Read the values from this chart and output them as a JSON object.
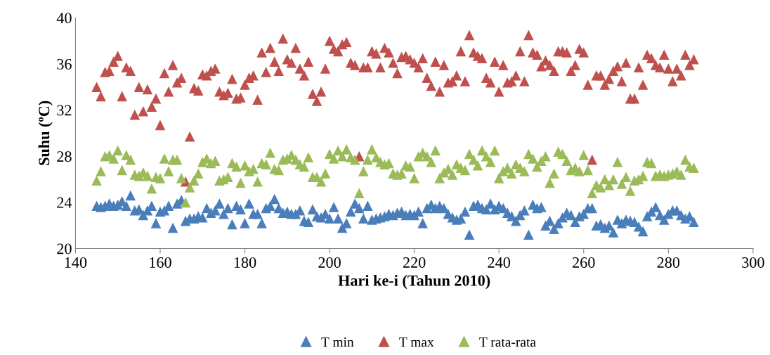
{
  "chart_data": {
    "type": "scatter",
    "xlabel": "Hari ke-i (Tahun 2010)",
    "ylabel": "Suhu (ºC)",
    "xlim": [
      140,
      300
    ],
    "xticks": [
      140,
      160,
      180,
      200,
      220,
      240,
      260,
      280,
      300
    ],
    "ylim": [
      20,
      40
    ],
    "yticks": [
      20,
      24,
      28,
      32,
      36,
      40
    ],
    "grid": false,
    "legend": "bottom",
    "marker": "triangle",
    "x": [
      145,
      146,
      147,
      148,
      149,
      150,
      151,
      152,
      153,
      154,
      155,
      156,
      157,
      158,
      159,
      160,
      161,
      162,
      163,
      164,
      165,
      166,
      167,
      168,
      169,
      170,
      171,
      172,
      173,
      174,
      175,
      176,
      177,
      178,
      179,
      180,
      181,
      182,
      183,
      184,
      185,
      186,
      187,
      188,
      189,
      190,
      191,
      192,
      193,
      194,
      195,
      196,
      197,
      198,
      199,
      200,
      201,
      202,
      203,
      204,
      205,
      206,
      207,
      208,
      209,
      210,
      211,
      212,
      213,
      214,
      215,
      216,
      217,
      218,
      219,
      220,
      221,
      222,
      223,
      224,
      225,
      226,
      227,
      228,
      229,
      230,
      231,
      232,
      233,
      234,
      235,
      236,
      237,
      238,
      239,
      240,
      241,
      242,
      243,
      244,
      245,
      246,
      247,
      248,
      249,
      250,
      251,
      252,
      253,
      254,
      255,
      256,
      257,
      258,
      259,
      260,
      261,
      262,
      263,
      264,
      265,
      266,
      267,
      268,
      269,
      270,
      271,
      272,
      273,
      274,
      275,
      276,
      277,
      278,
      279,
      280,
      281,
      282,
      283,
      284,
      285,
      286
    ],
    "series": [
      {
        "name": "T min",
        "color": "#4a7ebb",
        "values": [
          23.7,
          23.6,
          23.7,
          23.9,
          23.7,
          23.8,
          24.1,
          23.7,
          24.6,
          23.3,
          23.4,
          22.9,
          23.3,
          23.7,
          22.2,
          23.2,
          23.3,
          23.7,
          21.8,
          23.9,
          24.2,
          22.4,
          22.6,
          22.6,
          22.8,
          22.7,
          23.5,
          23.1,
          23.3,
          23.9,
          23.0,
          23.5,
          22.1,
          23.7,
          23.4,
          22.2,
          23.9,
          23.0,
          23.0,
          22.2,
          23.5,
          23.7,
          24.3,
          23.5,
          23.1,
          23.2,
          23.0,
          23.0,
          23.3,
          22.4,
          22.3,
          23.4,
          22.8,
          22.7,
          23.0,
          22.6,
          23.6,
          22.6,
          21.8,
          22.2,
          23.2,
          23.9,
          23.5,
          22.6,
          23.7,
          22.5,
          22.6,
          22.7,
          22.8,
          23.0,
          22.9,
          23.1,
          23.2,
          22.9,
          23.0,
          22.9,
          23.2,
          22.2,
          23.5,
          23.8,
          23.5,
          23.7,
          23.5,
          23.0,
          22.7,
          22.5,
          22.6,
          23.2,
          21.2,
          23.7,
          23.8,
          23.5,
          23.4,
          23.9,
          23.4,
          23.7,
          23.5,
          23.1,
          22.8,
          22.4,
          22.9,
          23.3,
          21.2,
          23.8,
          23.5,
          23.6,
          22.0,
          22.4,
          21.7,
          22.2,
          22.7,
          23.1,
          22.9,
          22.3,
          22.8,
          23.0,
          23.5,
          23.5,
          22.0,
          22.1,
          21.8,
          22.0,
          21.4,
          22.5,
          22.2,
          22.5,
          22.4,
          22.3,
          21.9,
          21.5,
          22.8,
          23.2,
          23.6,
          22.9,
          22.5,
          23.0,
          23.3,
          23.3,
          22.9,
          22.6,
          22.8,
          22.3
        ]
      },
      {
        "name": "T max",
        "color": "#c0504d",
        "values": [
          34.0,
          33.2,
          35.3,
          35.4,
          36.2,
          36.7,
          33.2,
          35.7,
          35.4,
          31.6,
          34.0,
          31.9,
          33.8,
          32.3,
          33.0,
          30.7,
          35.2,
          33.6,
          35.9,
          34.4,
          34.8,
          25.8,
          29.7,
          33.9,
          33.7,
          35.1,
          35.0,
          35.4,
          35.6,
          33.6,
          33.3,
          33.5,
          34.7,
          33.0,
          33.1,
          34.2,
          34.8,
          35.0,
          32.9,
          37.0,
          35.3,
          37.4,
          36.2,
          35.4,
          38.2,
          36.4,
          36.1,
          37.4,
          35.6,
          35.0,
          36.2,
          33.4,
          32.8,
          33.6,
          35.6,
          38.0,
          37.3,
          37.1,
          37.7,
          37.9,
          36.1,
          35.9,
          28.0,
          35.7,
          35.7,
          37.1,
          36.9,
          35.7,
          37.4,
          37.0,
          36.1,
          35.2,
          36.6,
          36.7,
          36.4,
          36.1,
          35.7,
          36.5,
          34.8,
          34.1,
          36.2,
          33.6,
          35.9,
          34.4,
          34.5,
          35.0,
          37.1,
          34.5,
          38.5,
          37.0,
          36.7,
          36.5,
          34.8,
          34.4,
          36.2,
          33.6,
          35.9,
          34.4,
          34.5,
          35.0,
          37.1,
          34.5,
          38.5,
          37.0,
          36.8,
          35.8,
          36.3,
          35.9,
          35.4,
          37.1,
          37.1,
          37.0,
          35.4,
          35.9,
          37.3,
          37.0,
          34.2,
          27.7,
          35.0,
          35.0,
          34.2,
          34.7,
          35.4,
          35.8,
          34.5,
          36.1,
          33.0,
          33.0,
          35.7,
          34.2,
          36.8,
          36.5,
          35.9,
          35.7,
          36.8,
          35.6,
          34.5,
          35.6,
          35.0,
          36.8,
          35.9,
          36.4
        ]
      },
      {
        "name": "T rata-rata",
        "color": "#9bbb59",
        "values": [
          25.9,
          26.7,
          28.0,
          28.1,
          27.8,
          28.5,
          26.8,
          28.1,
          27.7,
          26.4,
          26.3,
          26.6,
          26.3,
          25.2,
          26.2,
          26.1,
          27.8,
          26.7,
          27.7,
          27.7,
          26.1,
          24.0,
          25.3,
          25.9,
          26.5,
          27.5,
          27.8,
          27.4,
          27.6,
          25.9,
          26.0,
          26.2,
          27.4,
          27.1,
          25.7,
          27.2,
          26.7,
          26.9,
          25.8,
          27.4,
          27.3,
          28.3,
          26.9,
          26.8,
          27.7,
          27.8,
          28.1,
          27.7,
          27.3,
          27.1,
          27.9,
          26.2,
          26.2,
          25.8,
          26.5,
          28.2,
          27.8,
          28.5,
          28.0,
          28.6,
          27.9,
          27.7,
          24.8,
          26.7,
          27.7,
          28.6,
          27.9,
          27.5,
          27.3,
          27.4,
          26.5,
          26.4,
          26.5,
          27.2,
          27.1,
          26.1,
          28.0,
          28.3,
          28.0,
          27.5,
          28.5,
          26.1,
          26.6,
          26.9,
          26.4,
          27.3,
          27.0,
          26.8,
          28.2,
          27.7,
          27.2,
          28.5,
          28.0,
          27.5,
          28.5,
          26.1,
          26.7,
          27.0,
          26.5,
          27.3,
          27.0,
          26.7,
          28.2,
          27.8,
          27.1,
          27.6,
          28.0,
          25.7,
          26.5,
          28.4,
          28.2,
          27.6,
          26.8,
          27.0,
          26.7,
          28.1,
          26.8,
          24.8,
          25.5,
          25.3,
          26.0,
          25.5,
          26.0,
          27.5,
          25.6,
          26.2,
          25.0,
          25.9,
          26.0,
          26.3,
          27.5,
          27.4,
          26.3,
          26.4,
          26.3,
          26.4,
          26.5,
          26.7,
          26.4,
          27.7,
          27.1,
          27.0
        ]
      }
    ]
  }
}
